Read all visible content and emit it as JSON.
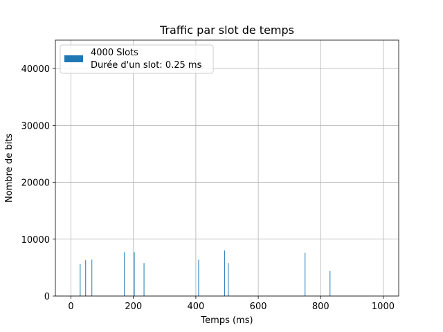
{
  "chart_data": {
    "type": "bar",
    "title": "Traffic par slot de temps",
    "xlabel": "Temps (ms)",
    "ylabel": "Nombre de bits",
    "xlim": [
      -50,
      1050
    ],
    "ylim": [
      0,
      45000
    ],
    "xticks": [
      0,
      200,
      400,
      600,
      800,
      1000
    ],
    "yticks": [
      0,
      10000,
      20000,
      30000,
      40000
    ],
    "xtick_labels": [
      "0",
      "200",
      "400",
      "600",
      "800",
      "1000"
    ],
    "ytick_labels": [
      "0",
      "10000",
      "20000",
      "30000",
      "40000"
    ],
    "grid": true,
    "legend_position": "top-left",
    "legend": {
      "line1": "4000 Slots",
      "line2": "Durée d'un slot: 0.25 ms"
    },
    "bar_color": "#1f77b4",
    "slot_width_ms": 0.25,
    "series": [
      {
        "x": [
          29.5,
          47,
          67,
          171,
          203,
          234,
          409,
          492,
          504,
          750,
          830
        ],
        "values": [
          5600,
          6300,
          6400,
          7700,
          7700,
          5800,
          6400,
          8000,
          5800,
          7600,
          4400
        ]
      }
    ]
  }
}
